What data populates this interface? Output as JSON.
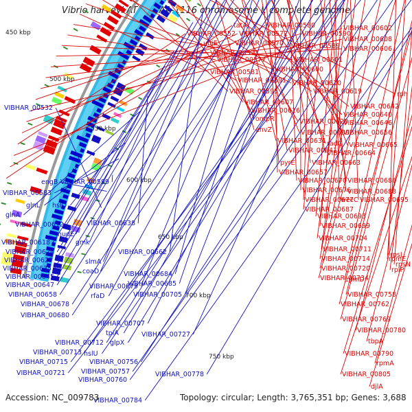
{
  "title": "Vibrio harveyi ATCC BAA-1116 chromosome I, complete genome",
  "footer": {
    "accession": "Accession: NC_009783",
    "topology": "Topology: circular; Length: 3,765,351 bp; Genes: 3,688"
  },
  "colors": {
    "plus_strand": "#e00000",
    "minus_strand": "#1010c0",
    "gc_track": "#35b9e6",
    "skew_track": "#0000cc",
    "backbone": "#999999",
    "tick_marks": "#2e8b2e"
  },
  "kbp_ticks": [
    "450 kbp",
    "500 kbp",
    "550 kbp",
    "600 kbp",
    "650 kbp",
    "700 kbp",
    "750 kbp"
  ],
  "left_labels": [
    "VIBHAR_00532",
    "engB",
    "VIBHAR_00599",
    "VIBHAR_00583",
    "glnL",
    "hslO",
    "glnA",
    "VIBHAR_00638",
    "VIBHAR_00612",
    "nudE",
    "VIBHAR_00618",
    "gmk",
    "VIBHAR_00624",
    "VIBHAR_00662",
    "VIBHAR_00627",
    "slmA",
    "VIBHAR_00635",
    "coaD",
    "VIBHAR_00645",
    "VIBHAR_00684",
    "VIBHAR_00647",
    "VIBHAR_00679",
    "VIBHAR_00685",
    "VIBHAR_00658",
    "rfaD",
    "VIBHAR_00705",
    "VIBHAR_00678",
    "VIBHAR_00680",
    "VIBHAR_00707",
    "tpiA",
    "VIBHAR_00727",
    "VIBHAR_00712",
    "glpX",
    "VIBHAR_00713",
    "hslU",
    "VIBHAR_00715",
    "VIBHAR_00756",
    "VIBHAR_00721",
    "VIBHAR_00757",
    "VIBHAR_00778",
    "VIBHAR_00760",
    "VIBHAR_00784"
  ],
  "right_labels": [
    "tatA",
    "VIBHAR_00580",
    "VIBHAR_00602",
    "VIBHAR_00552",
    "VIBHAR_00572",
    "VIBHAR_00590",
    "VIBHAR_00608",
    "ubiE",
    "VIBHAR_00570",
    "VIBHAR_00589",
    "VIBHAR_00606",
    "VIBHAR_00571",
    "rbn",
    "VIBHAR_00577",
    "VIBHAR_00601",
    "VIBHAR_00581",
    "VIBHAR_00600",
    "VIBHAR_00591",
    "VIBHAR_00610",
    "VIBHAR_00595",
    "VIBHAR_00619",
    "rph",
    "VIBHAR_00607",
    "VIBHAR_00642",
    "VIBHAR_00616",
    "VIBHAR_00640",
    "ompR",
    "VIBHAR_00628",
    "VIBHAR_00646",
    "envZ",
    "VIBHAR_00639",
    "VIBHAR_00656",
    "VIBHAR_00631",
    "radC",
    "VIBHAR_00665",
    "VIBHAR_00641",
    "VIBHAR_00664",
    "pyrE",
    "VIBHAR_00663",
    "VIBHAR_00657",
    "VIBHAR_00670",
    "VIBHAR_00686",
    "VIBHAR_00676",
    "VIBHAR_00688",
    "VIBHAR_00677",
    "wecC",
    "VIBHAR_00695",
    "VIBHAR_00687",
    "VIBHAR_00693",
    "VIBHAR_00699",
    "VIBHAR_00704",
    "VIBHAR_00711",
    "rpsJ",
    "VIBHAR_00714",
    "rpmE",
    "rpsN",
    "VIBHAR_00720",
    "rplP",
    "rpmD",
    "VIBHAR_00734",
    "VIBHAR_00758",
    "VIBHAR_00762",
    "VIBHAR_00769",
    "VIBHAR_00780",
    "tbpA",
    "VIBHAR_00790",
    "rpmA",
    "VIBHAR_00805",
    "djlA"
  ]
}
